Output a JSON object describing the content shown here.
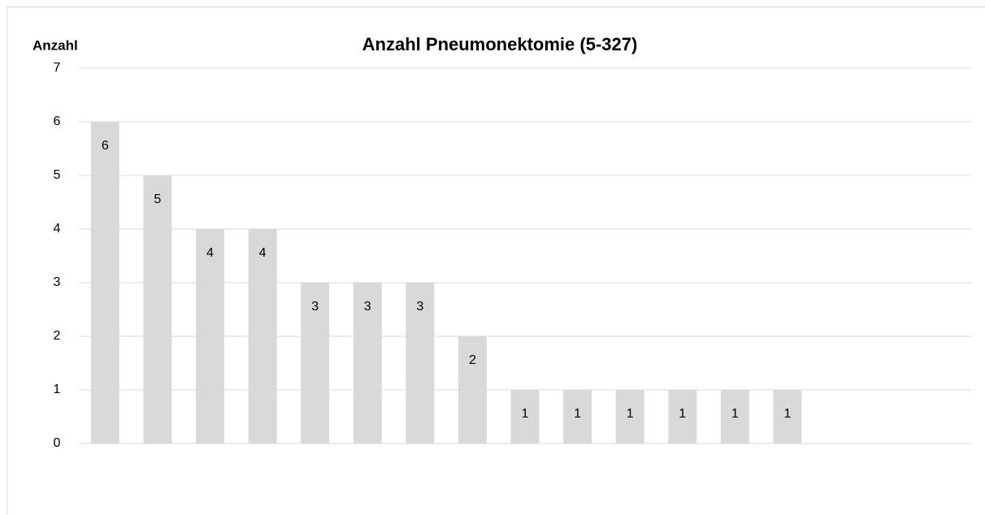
{
  "chart_data": {
    "type": "bar",
    "title": "Anzahl Pneumonektomie (5-327)",
    "y_label": "Anzahl",
    "categories": [
      null,
      null,
      null,
      null,
      null,
      null,
      null,
      null,
      null,
      null,
      null,
      null,
      null,
      null,
      null,
      null,
      null
    ],
    "values": [
      6,
      5,
      4,
      4,
      3,
      3,
      3,
      2,
      1,
      1,
      1,
      1,
      1,
      1,
      null,
      null,
      null
    ],
    "color": "#d9d9d9",
    "ylim": [
      0,
      7
    ],
    "yticks": [
      0,
      1,
      2,
      3,
      4,
      5,
      6,
      7
    ],
    "grid": true,
    "data_labels": true
  }
}
